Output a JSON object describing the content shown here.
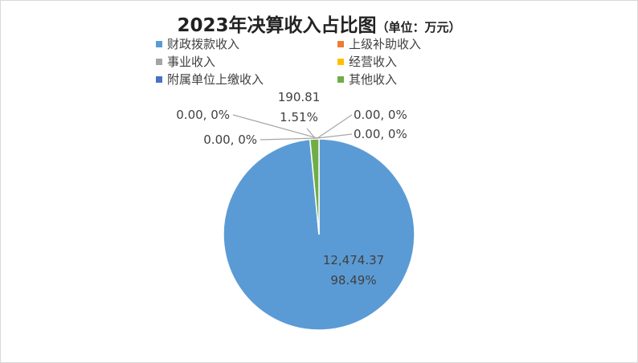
{
  "chart_data": {
    "type": "pie",
    "title": "2023年决算收入占比图",
    "subtitle": "（单位：万元）",
    "series": [
      {
        "name": "财政拨款收入",
        "value": 12474.37,
        "value_label": "12,474.37",
        "percent_label": "98.49%",
        "color": "#5b9bd5"
      },
      {
        "name": "上级补助收入",
        "value": 0.0,
        "value_label": "0.00",
        "percent_label": "0%",
        "color": "#ed7d31"
      },
      {
        "name": "事业收入",
        "value": 0.0,
        "value_label": "0.00",
        "percent_label": "0%",
        "color": "#a5a5a5"
      },
      {
        "name": "经营收入",
        "value": 0.0,
        "value_label": "0.00",
        "percent_label": "0%",
        "color": "#ffc000"
      },
      {
        "name": "附属单位上缴收入",
        "value": 0.0,
        "value_label": "0.00",
        "percent_label": "0%",
        "color": "#4472c4"
      },
      {
        "name": "其他收入",
        "value": 190.81,
        "value_label": "190.81",
        "percent_label": "1.51%",
        "color": "#70ad47"
      }
    ],
    "legend": "top"
  }
}
